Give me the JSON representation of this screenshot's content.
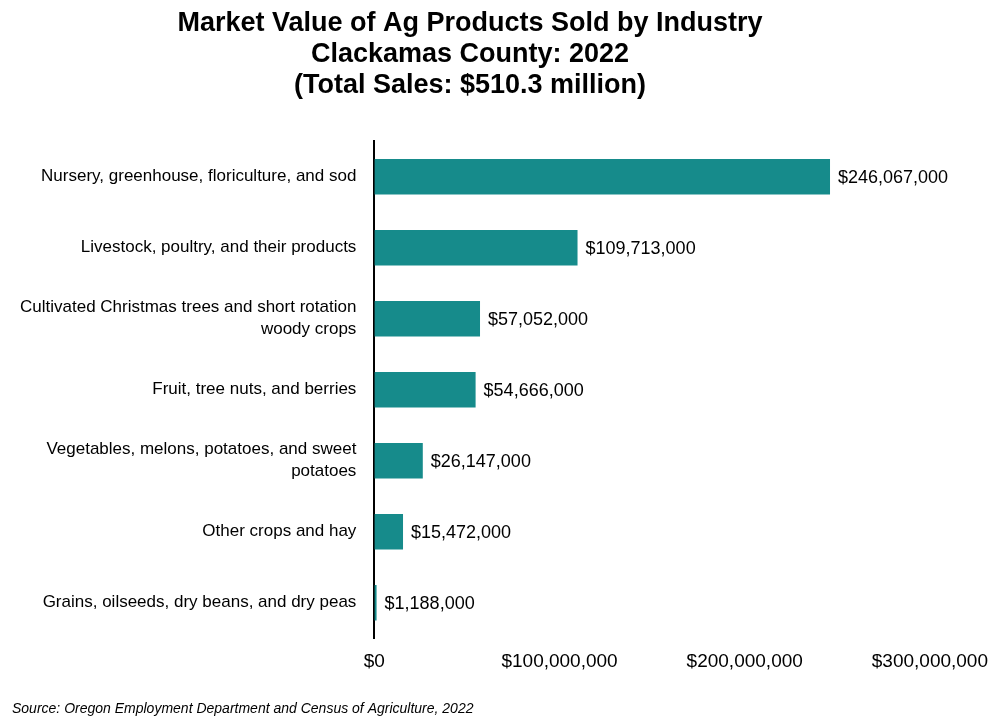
{
  "chart_data": {
    "type": "bar",
    "title": [
      "Market Value of Ag Products Sold by Industry",
      "Clackamas County: 2022",
      "(Total Sales: $510.3 million)"
    ],
    "categories": [
      "Nursery, greenhouse, floriculture, and sod",
      "Livestock, poultry, and their products",
      "Cultivated Christmas trees and short rotation woody crops",
      "Fruit, tree nuts, and berries",
      "Vegetables, melons, potatoes, and sweet potatoes",
      "Other crops and hay",
      "Grains, oilseeds, dry beans, and dry peas"
    ],
    "values": [
      246067000,
      109713000,
      57052000,
      54666000,
      26147000,
      15472000,
      1188000
    ],
    "value_labels": [
      "$246,067,000",
      "$109,713,000",
      "$57,052,000",
      "$54,666,000",
      "$26,147,000",
      "$15,472,000",
      "$1,188,000"
    ],
    "color": "#168b8b",
    "orientation": "horizontal",
    "data_labels": true,
    "grid": false,
    "xlim": [
      0,
      300000000
    ],
    "xticks": [
      {
        "value": 0,
        "label": "$0"
      },
      {
        "value": 100000000,
        "label": "$100,000,000"
      },
      {
        "value": 200000000,
        "label": "$200,000,000"
      },
      {
        "value": 300000000,
        "label": "$300,000,000"
      }
    ],
    "annotations": [
      "Source: Oregon Employment Department and Census of Agriculture, 2022"
    ]
  }
}
